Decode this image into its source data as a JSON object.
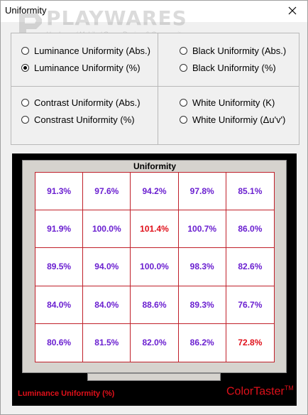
{
  "window": {
    "title": "Uniformity"
  },
  "watermark": {
    "brand": "PLAYWARES",
    "tagline": "Hardware / Mobile / Game Review & Community"
  },
  "options": {
    "left_top": [
      {
        "label": "Luminance Uniformity (Abs.)",
        "checked": false
      },
      {
        "label": "Luminance Uniformity (%)",
        "checked": true
      }
    ],
    "right_top": [
      {
        "label": "Black Uniformity (Abs.)",
        "checked": false
      },
      {
        "label": "Black Uniformity (%)",
        "checked": false
      }
    ],
    "left_bottom": [
      {
        "label": "Contrast Uniformity (Abs.)",
        "checked": false
      },
      {
        "label": "Constrast Uniformity (%)",
        "checked": false
      }
    ],
    "right_bottom": [
      {
        "label": "White Uniformity (K)",
        "checked": false
      },
      {
        "label": "White Uniformiy (Δu'v')",
        "checked": false
      }
    ]
  },
  "display": {
    "title": "Uniformity",
    "mode_label": "Luminance Uniformity (%)",
    "brand": "ColorTaster",
    "brand_mark": "TM",
    "rows": [
      [
        "91.3%",
        "97.6%",
        "94.2%",
        "97.8%",
        "85.1%"
      ],
      [
        "91.9%",
        "100.0%",
        "101.4%",
        "100.7%",
        "86.0%"
      ],
      [
        "89.5%",
        "94.0%",
        "100.0%",
        "98.3%",
        "82.6%"
      ],
      [
        "84.0%",
        "84.0%",
        "88.6%",
        "89.3%",
        "76.7%"
      ],
      [
        "80.6%",
        "81.5%",
        "82.0%",
        "86.2%",
        "72.8%"
      ]
    ],
    "highlighted_cells": [
      "1-2",
      "4-4"
    ],
    "colors": {
      "value": "#6a1fd0",
      "highlight": "#e0101a",
      "grid": "#c0202a"
    }
  }
}
